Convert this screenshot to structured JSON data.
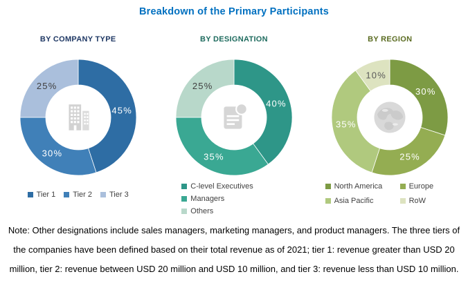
{
  "title": "Breakdown of the Primary Participants",
  "title_color": "#0070C0",
  "note": {
    "lines": [
      "Note: Other designations include sales managers, marketing managers, and product managers.  The three tiers of",
      "the companies have been defined based on their total revenue as of 2021; tier 1: revenue greater than USD 20",
      "million, tier 2: revenue between USD 20 million and USD 10 million, and tier 3: revenue less than USD 10 million."
    ]
  },
  "chart_data": [
    {
      "type": "pie",
      "subtype": "donut",
      "title": "BY COMPANY TYPE",
      "title_color": "#1f3864",
      "center_icon": "building-icon",
      "categories": [
        "Tier 1",
        "Tier 2",
        "Tier 3"
      ],
      "values": [
        45,
        30,
        25
      ],
      "labels": [
        "45%",
        "30%",
        "25%"
      ],
      "slice_colors": [
        "#2e6da4",
        "#4080b8",
        "#aabfdc"
      ],
      "label_colors": [
        "#ffffff",
        "#ffffff",
        "#404040"
      ],
      "legend_layout": "row",
      "legend_position": "bottom"
    },
    {
      "type": "pie",
      "subtype": "donut",
      "title": "BY DESIGNATION",
      "title_color": "#1e6b5e",
      "center_icon": "document-icon",
      "categories": [
        "C-level Executives",
        "Managers",
        "Others"
      ],
      "values": [
        40,
        35,
        25
      ],
      "labels": [
        "40%",
        "35%",
        "25%"
      ],
      "slice_colors": [
        "#2e9688",
        "#3aa893",
        "#b8d8ca"
      ],
      "label_colors": [
        "#ffffff",
        "#ffffff",
        "#404040"
      ],
      "legend_layout": "column",
      "legend_position": "bottom"
    },
    {
      "type": "pie",
      "subtype": "donut",
      "title": "BY REGION",
      "title_color": "#5a6b21",
      "center_icon": "globe-icon",
      "categories": [
        "North America",
        "Europe",
        "Asia Pacific",
        "RoW"
      ],
      "values": [
        30,
        25,
        35,
        10
      ],
      "labels": [
        "30%",
        "25%",
        "35%",
        "10%"
      ],
      "slice_colors": [
        "#7d9b44",
        "#94ad52",
        "#b0c97e",
        "#dde3c0"
      ],
      "label_colors": [
        "#ffffff",
        "#ffffff",
        "#ffffff",
        "#595959"
      ],
      "legend_layout": "grid",
      "legend_position": "bottom"
    }
  ]
}
